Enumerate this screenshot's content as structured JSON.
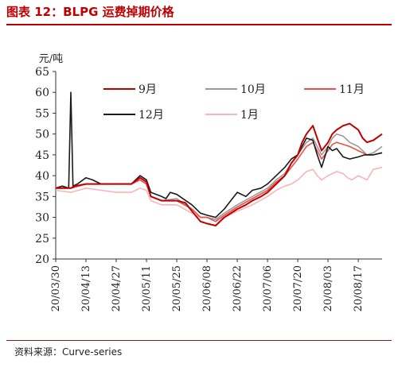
{
  "header": {
    "title": "图表 12：BLPG 运费掉期价格"
  },
  "footer": {
    "source": "资料来源：Curve-series"
  },
  "chart_data": {
    "type": "line",
    "ylabel": "元/吨",
    "ylim": [
      20,
      65
    ],
    "yticks": [
      20,
      25,
      30,
      35,
      40,
      45,
      50,
      55,
      60,
      65
    ],
    "x_start": "2020-03-30",
    "x_end": "2020-08-28",
    "xticks": [
      "20/03/30",
      "20/04/13",
      "20/04/27",
      "20/05/11",
      "20/05/25",
      "20/06/08",
      "20/06/22",
      "20/07/06",
      "20/07/20",
      "20/08/03",
      "20/08/17"
    ],
    "xtick_dates": [
      "2020-03-30",
      "2020-04-13",
      "2020-04-27",
      "2020-05-11",
      "2020-05-25",
      "2020-06-08",
      "2020-06-22",
      "2020-07-06",
      "2020-07-20",
      "2020-08-03",
      "2020-08-17"
    ],
    "legend_position": "top",
    "grid": false,
    "series": [
      {
        "name": "9月",
        "color": "#c00000",
        "width": 2.0,
        "points": [
          [
            "2020-03-30",
            37
          ],
          [
            "2020-04-02",
            37
          ],
          [
            "2020-04-06",
            37
          ],
          [
            "2020-04-08",
            37.5
          ],
          [
            "2020-04-13",
            38
          ],
          [
            "2020-04-20",
            38
          ],
          [
            "2020-04-27",
            38
          ],
          [
            "2020-05-04",
            38
          ],
          [
            "2020-05-08",
            39.5
          ],
          [
            "2020-05-11",
            38.5
          ],
          [
            "2020-05-13",
            35
          ],
          [
            "2020-05-18",
            34
          ],
          [
            "2020-05-25",
            34
          ],
          [
            "2020-05-29",
            33.5
          ],
          [
            "2020-06-01",
            31.5
          ],
          [
            "2020-06-05",
            29
          ],
          [
            "2020-06-08",
            28.5
          ],
          [
            "2020-06-12",
            28
          ],
          [
            "2020-06-16",
            30
          ],
          [
            "2020-06-22",
            32
          ],
          [
            "2020-06-26",
            33
          ],
          [
            "2020-06-29",
            34
          ],
          [
            "2020-07-03",
            35
          ],
          [
            "2020-07-06",
            36
          ],
          [
            "2020-07-10",
            38
          ],
          [
            "2020-07-14",
            40
          ],
          [
            "2020-07-17",
            43
          ],
          [
            "2020-07-20",
            45
          ],
          [
            "2020-07-22",
            48
          ],
          [
            "2020-07-24",
            50
          ],
          [
            "2020-07-27",
            52
          ],
          [
            "2020-07-29",
            49
          ],
          [
            "2020-07-31",
            46
          ],
          [
            "2020-08-03",
            48
          ],
          [
            "2020-08-05",
            50
          ],
          [
            "2020-08-07",
            51
          ],
          [
            "2020-08-10",
            52
          ],
          [
            "2020-08-13",
            52.5
          ],
          [
            "2020-08-17",
            51
          ],
          [
            "2020-08-19",
            49
          ],
          [
            "2020-08-21",
            48
          ],
          [
            "2020-08-24",
            48.5
          ],
          [
            "2020-08-28",
            50
          ]
        ]
      },
      {
        "name": "10月",
        "color": "#9a9a9a",
        "width": 1.6,
        "points": [
          [
            "2020-03-30",
            37
          ],
          [
            "2020-04-06",
            37
          ],
          [
            "2020-04-13",
            38
          ],
          [
            "2020-04-20",
            38
          ],
          [
            "2020-04-27",
            38
          ],
          [
            "2020-05-04",
            38
          ],
          [
            "2020-05-08",
            39
          ],
          [
            "2020-05-11",
            38
          ],
          [
            "2020-05-13",
            35
          ],
          [
            "2020-05-18",
            34
          ],
          [
            "2020-05-25",
            34.5
          ],
          [
            "2020-06-01",
            32
          ],
          [
            "2020-06-05",
            30
          ],
          [
            "2020-06-08",
            30
          ],
          [
            "2020-06-12",
            29.5
          ],
          [
            "2020-06-16",
            31
          ],
          [
            "2020-06-22",
            33
          ],
          [
            "2020-06-29",
            35
          ],
          [
            "2020-07-06",
            37
          ],
          [
            "2020-07-10",
            39
          ],
          [
            "2020-07-14",
            40.5
          ],
          [
            "2020-07-17",
            43
          ],
          [
            "2020-07-20",
            45
          ],
          [
            "2020-07-24",
            48
          ],
          [
            "2020-07-27",
            49
          ],
          [
            "2020-07-29",
            47
          ],
          [
            "2020-07-31",
            45
          ],
          [
            "2020-08-03",
            47
          ],
          [
            "2020-08-05",
            49
          ],
          [
            "2020-08-07",
            50
          ],
          [
            "2020-08-10",
            49.5
          ],
          [
            "2020-08-13",
            48
          ],
          [
            "2020-08-17",
            47
          ],
          [
            "2020-08-19",
            46
          ],
          [
            "2020-08-21",
            45
          ],
          [
            "2020-08-24",
            45.5
          ],
          [
            "2020-08-28",
            47
          ]
        ]
      },
      {
        "name": "11月",
        "color": "#e8514a",
        "width": 1.6,
        "points": [
          [
            "2020-03-30",
            37
          ],
          [
            "2020-04-06",
            37
          ],
          [
            "2020-04-13",
            38
          ],
          [
            "2020-04-20",
            38
          ],
          [
            "2020-04-27",
            38
          ],
          [
            "2020-05-04",
            38
          ],
          [
            "2020-05-08",
            39
          ],
          [
            "2020-05-11",
            38
          ],
          [
            "2020-05-13",
            35
          ],
          [
            "2020-05-18",
            34
          ],
          [
            "2020-05-25",
            34
          ],
          [
            "2020-06-01",
            32
          ],
          [
            "2020-06-05",
            30
          ],
          [
            "2020-06-08",
            30
          ],
          [
            "2020-06-12",
            29
          ],
          [
            "2020-06-16",
            30.5
          ],
          [
            "2020-06-22",
            32.5
          ],
          [
            "2020-06-29",
            34.5
          ],
          [
            "2020-07-06",
            36.5
          ],
          [
            "2020-07-10",
            38.5
          ],
          [
            "2020-07-14",
            40
          ],
          [
            "2020-07-17",
            42
          ],
          [
            "2020-07-20",
            44
          ],
          [
            "2020-07-24",
            47
          ],
          [
            "2020-07-27",
            48
          ],
          [
            "2020-07-29",
            46
          ],
          [
            "2020-07-31",
            44
          ],
          [
            "2020-08-03",
            46
          ],
          [
            "2020-08-05",
            47.5
          ],
          [
            "2020-08-07",
            48
          ],
          [
            "2020-08-10",
            47.5
          ],
          [
            "2020-08-13",
            47
          ],
          [
            "2020-08-17",
            46
          ],
          [
            "2020-08-19",
            45.5
          ],
          [
            "2020-08-21",
            45
          ],
          [
            "2020-08-24",
            45
          ],
          [
            "2020-08-28",
            45.5
          ]
        ]
      },
      {
        "name": "12月",
        "color": "#1a1a1a",
        "width": 1.6,
        "points": [
          [
            "2020-03-30",
            37
          ],
          [
            "2020-04-02",
            37.5
          ],
          [
            "2020-04-05",
            37
          ],
          [
            "2020-04-06",
            60
          ],
          [
            "2020-04-07",
            37.5
          ],
          [
            "2020-04-09",
            38
          ],
          [
            "2020-04-13",
            39.5
          ],
          [
            "2020-04-16",
            39
          ],
          [
            "2020-04-20",
            38
          ],
          [
            "2020-04-27",
            38
          ],
          [
            "2020-05-04",
            38
          ],
          [
            "2020-05-08",
            40
          ],
          [
            "2020-05-11",
            39
          ],
          [
            "2020-05-13",
            36
          ],
          [
            "2020-05-18",
            35
          ],
          [
            "2020-05-20",
            34.5
          ],
          [
            "2020-05-22",
            36
          ],
          [
            "2020-05-25",
            35.5
          ],
          [
            "2020-06-01",
            33
          ],
          [
            "2020-06-05",
            31
          ],
          [
            "2020-06-08",
            30.5
          ],
          [
            "2020-06-12",
            30
          ],
          [
            "2020-06-16",
            32
          ],
          [
            "2020-06-19",
            34
          ],
          [
            "2020-06-22",
            36
          ],
          [
            "2020-06-26",
            35
          ],
          [
            "2020-06-29",
            36.5
          ],
          [
            "2020-07-03",
            37
          ],
          [
            "2020-07-06",
            38
          ],
          [
            "2020-07-10",
            40
          ],
          [
            "2020-07-14",
            42
          ],
          [
            "2020-07-17",
            44
          ],
          [
            "2020-07-20",
            45
          ],
          [
            "2020-07-22",
            47
          ],
          [
            "2020-07-24",
            49
          ],
          [
            "2020-07-27",
            48.5
          ],
          [
            "2020-07-29",
            45
          ],
          [
            "2020-07-31",
            42
          ],
          [
            "2020-08-03",
            47
          ],
          [
            "2020-08-05",
            46
          ],
          [
            "2020-08-07",
            46.5
          ],
          [
            "2020-08-10",
            44.5
          ],
          [
            "2020-08-13",
            44
          ],
          [
            "2020-08-17",
            44.5
          ],
          [
            "2020-08-20",
            45
          ],
          [
            "2020-08-24",
            45
          ],
          [
            "2020-08-28",
            45.5
          ]
        ]
      },
      {
        "name": "1月",
        "color": "#f6b6b6",
        "width": 1.6,
        "points": [
          [
            "2020-03-30",
            36.5
          ],
          [
            "2020-04-06",
            36
          ],
          [
            "2020-04-13",
            37
          ],
          [
            "2020-04-20",
            36.5
          ],
          [
            "2020-04-27",
            36
          ],
          [
            "2020-05-04",
            36
          ],
          [
            "2020-05-08",
            37
          ],
          [
            "2020-05-11",
            36.5
          ],
          [
            "2020-05-13",
            34
          ],
          [
            "2020-05-18",
            33
          ],
          [
            "2020-05-25",
            33
          ],
          [
            "2020-06-01",
            31
          ],
          [
            "2020-06-05",
            30
          ],
          [
            "2020-06-08",
            30
          ],
          [
            "2020-06-12",
            29.5
          ],
          [
            "2020-06-16",
            30
          ],
          [
            "2020-06-22",
            31.5
          ],
          [
            "2020-06-29",
            33
          ],
          [
            "2020-07-06",
            35
          ],
          [
            "2020-07-10",
            36.5
          ],
          [
            "2020-07-14",
            37.5
          ],
          [
            "2020-07-17",
            38
          ],
          [
            "2020-07-20",
            39
          ],
          [
            "2020-07-24",
            41
          ],
          [
            "2020-07-27",
            41.5
          ],
          [
            "2020-07-29",
            40
          ],
          [
            "2020-07-31",
            39
          ],
          [
            "2020-08-03",
            40
          ],
          [
            "2020-08-05",
            40.5
          ],
          [
            "2020-08-07",
            41
          ],
          [
            "2020-08-10",
            40.5
          ],
          [
            "2020-08-12",
            39.5
          ],
          [
            "2020-08-14",
            39
          ],
          [
            "2020-08-17",
            40
          ],
          [
            "2020-08-19",
            39.5
          ],
          [
            "2020-08-21",
            39
          ],
          [
            "2020-08-24",
            41.5
          ],
          [
            "2020-08-28",
            42
          ]
        ]
      }
    ]
  }
}
